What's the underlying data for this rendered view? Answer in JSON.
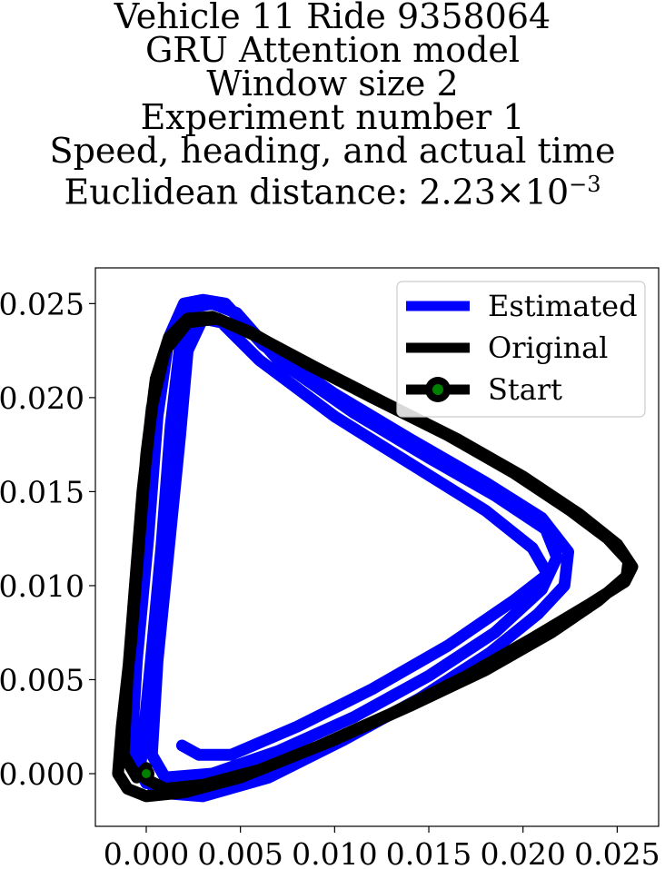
{
  "chart_data": {
    "type": "line",
    "title_lines": [
      "Vehicle 11 Ride 9358064",
      "GRU Attention model",
      "Window size 2",
      "Experiment number 1",
      "Speed, heading, and actual time"
    ],
    "title_distance_prefix": "Euclidean distance: 2.23×10",
    "title_distance_exponent": "−3",
    "xlim": [
      -0.0027,
      0.0272
    ],
    "ylim": [
      -0.0028,
      0.0269
    ],
    "xticks": [
      "0.000",
      "0.005",
      "0.010",
      "0.015",
      "0.020",
      "0.025"
    ],
    "xtick_values": [
      0.0,
      0.005,
      0.01,
      0.015,
      0.02,
      0.025
    ],
    "yticks": [
      "0.000",
      "0.005",
      "0.010",
      "0.015",
      "0.020",
      "0.025"
    ],
    "ytick_values": [
      0.0,
      0.005,
      0.01,
      0.015,
      0.02,
      0.025
    ],
    "grid": false,
    "legend_position": "top-right",
    "series": [
      {
        "name": "Estimated",
        "color": "#0000ff",
        "points": [
          [
            0.0019,
            0.0015
          ],
          [
            0.0028,
            0.001
          ],
          [
            0.0045,
            0.001
          ],
          [
            0.008,
            0.0025
          ],
          [
            0.012,
            0.0045
          ],
          [
            0.016,
            0.0068
          ],
          [
            0.0195,
            0.0092
          ],
          [
            0.0213,
            0.0106
          ],
          [
            0.0205,
            0.012
          ],
          [
            0.018,
            0.014
          ],
          [
            0.014,
            0.0165
          ],
          [
            0.01,
            0.019
          ],
          [
            0.006,
            0.022
          ],
          [
            0.004,
            0.024
          ],
          [
            0.003,
            0.0242
          ],
          [
            0.0022,
            0.0225
          ],
          [
            0.0018,
            0.018
          ],
          [
            0.0012,
            0.012
          ],
          [
            0.0006,
            0.006
          ],
          [
            0.0003,
            0.001
          ],
          [
            0.001,
            -0.0002
          ],
          [
            0.0035,
            0.0
          ],
          [
            0.007,
            0.0012
          ],
          [
            0.011,
            0.003
          ],
          [
            0.015,
            0.0052
          ],
          [
            0.0185,
            0.0075
          ],
          [
            0.021,
            0.0098
          ],
          [
            0.0218,
            0.0115
          ],
          [
            0.0212,
            0.013
          ],
          [
            0.0185,
            0.0148
          ],
          [
            0.015,
            0.0168
          ],
          [
            0.011,
            0.0192
          ],
          [
            0.007,
            0.022
          ],
          [
            0.0048,
            0.0245
          ],
          [
            0.0035,
            0.025
          ],
          [
            0.0025,
            0.0248
          ],
          [
            0.0018,
            0.0228
          ],
          [
            0.0013,
            0.0185
          ],
          [
            0.0008,
            0.012
          ],
          [
            0.0002,
            0.0055
          ],
          [
            -0.0003,
            0.0005
          ],
          [
            0.0005,
            -0.001
          ],
          [
            0.003,
            -0.0012
          ],
          [
            0.0065,
            -0.0002
          ],
          [
            0.0105,
            0.0018
          ],
          [
            0.0145,
            0.004
          ],
          [
            0.0182,
            0.0064
          ],
          [
            0.0208,
            0.0085
          ],
          [
            0.0222,
            0.01
          ],
          [
            0.0224,
            0.0118
          ],
          [
            0.021,
            0.0136
          ],
          [
            0.018,
            0.0155
          ],
          [
            0.014,
            0.0178
          ],
          [
            0.01,
            0.0202
          ],
          [
            0.0062,
            0.0228
          ],
          [
            0.0042,
            0.025
          ],
          [
            0.003,
            0.0252
          ],
          [
            0.002,
            0.025
          ],
          [
            0.0012,
            0.0232
          ],
          [
            0.0006,
            0.019
          ],
          [
            0.0001,
            0.0125
          ],
          [
            -0.0005,
            0.006
          ],
          [
            -0.0008,
            0.001
          ],
          [
            0.0,
            -0.0005
          ]
        ]
      },
      {
        "name": "Original",
        "color": "#000000",
        "points": [
          [
            0.0,
            -0.0003
          ],
          [
            0.001,
            -0.0008
          ],
          [
            0.003,
            -0.0006
          ],
          [
            0.006,
            0.0002
          ],
          [
            0.01,
            0.0018
          ],
          [
            0.014,
            0.0036
          ],
          [
            0.018,
            0.0055
          ],
          [
            0.0215,
            0.0075
          ],
          [
            0.024,
            0.0092
          ],
          [
            0.0255,
            0.0105
          ],
          [
            0.0256,
            0.0113
          ],
          [
            0.0245,
            0.0125
          ],
          [
            0.0225,
            0.014
          ],
          [
            0.0195,
            0.016
          ],
          [
            0.016,
            0.018
          ],
          [
            0.012,
            0.02
          ],
          [
            0.0085,
            0.0218
          ],
          [
            0.0055,
            0.0235
          ],
          [
            0.0035,
            0.0243
          ],
          [
            0.0022,
            0.0242
          ],
          [
            0.0012,
            0.0232
          ],
          [
            0.0005,
            0.021
          ],
          [
            0.0,
            0.017
          ],
          [
            -0.0004,
            0.012
          ],
          [
            -0.0008,
            0.007
          ],
          [
            -0.0013,
            0.0025
          ],
          [
            -0.0015,
            0.0
          ],
          [
            -0.001,
            -0.0008
          ],
          [
            0.0,
            -0.0012
          ],
          [
            0.002,
            -0.001
          ],
          [
            0.005,
            -0.0002
          ],
          [
            0.009,
            0.0014
          ],
          [
            0.013,
            0.0032
          ],
          [
            0.017,
            0.0052
          ],
          [
            0.0205,
            0.0072
          ],
          [
            0.0235,
            0.009
          ],
          [
            0.0254,
            0.0102
          ],
          [
            0.0258,
            0.011
          ],
          [
            0.025,
            0.0122
          ],
          [
            0.023,
            0.0138
          ],
          [
            0.02,
            0.0158
          ],
          [
            0.0165,
            0.0178
          ],
          [
            0.0125,
            0.0198
          ],
          [
            0.009,
            0.0216
          ],
          [
            0.006,
            0.0232
          ],
          [
            0.0038,
            0.0242
          ],
          [
            0.0022,
            0.024
          ],
          [
            0.001,
            0.0225
          ],
          [
            0.0003,
            0.0195
          ],
          [
            -0.0002,
            0.015
          ],
          [
            -0.0006,
            0.01
          ],
          [
            -0.001,
            0.005
          ],
          [
            -0.0012,
            0.001
          ],
          [
            -0.0005,
            -0.0002
          ],
          [
            0.0,
            0.0003
          ]
        ]
      }
    ],
    "start_point": {
      "name": "Start",
      "x": 0.0,
      "y": 0.0,
      "color": "#008000"
    }
  }
}
